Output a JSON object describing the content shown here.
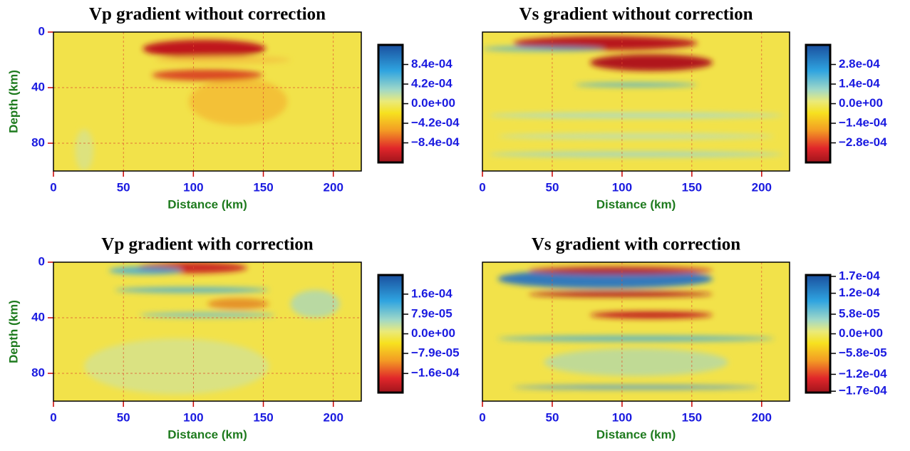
{
  "chart_data": [
    {
      "type": "heatmap",
      "title": "Vp gradient without correction",
      "xlabel": "Distance (km)",
      "ylabel": "Depth (km)",
      "xlim": [
        0,
        220
      ],
      "xticks": [
        0,
        50,
        100,
        150,
        200
      ],
      "ylim": [
        100,
        0
      ],
      "yticks": [
        0,
        40,
        80
      ],
      "grid": true,
      "clim": [
        -0.00126,
        0.00126
      ],
      "cticks": [
        {
          "value": 0.00084,
          "label": "8.4e-04"
        },
        {
          "value": 0.00042,
          "label": "4.2e-04"
        },
        {
          "value": 0,
          "label": "0.0e+00"
        },
        {
          "value": -0.00042,
          "label": "−4.2e-04"
        },
        {
          "value": -0.00084,
          "label": "−8.4e-04"
        }
      ]
    },
    {
      "type": "heatmap",
      "title": "Vs gradient without correction",
      "xlabel": "Distance (km)",
      "xlim": [
        0,
        220
      ],
      "xticks": [
        0,
        50,
        100,
        150,
        200
      ],
      "ylim": [
        100,
        0
      ],
      "grid": true,
      "clim": [
        -0.00042,
        0.00042
      ],
      "cticks": [
        {
          "value": 0.00028,
          "label": "2.8e-04"
        },
        {
          "value": 0.00014,
          "label": "1.4e-04"
        },
        {
          "value": 0,
          "label": "0.0e+00"
        },
        {
          "value": -0.00014,
          "label": "−1.4e-04"
        },
        {
          "value": -0.00028,
          "label": "−2.8e-04"
        }
      ]
    },
    {
      "type": "heatmap",
      "title": "Vp gradient with correction",
      "xlabel": "Distance (km)",
      "ylabel": "Depth (km)",
      "xlim": [
        0,
        220
      ],
      "xticks": [
        0,
        50,
        100,
        150,
        200
      ],
      "ylim": [
        100,
        0
      ],
      "yticks": [
        0,
        40,
        80
      ],
      "grid": true,
      "clim": [
        -0.000237,
        0.000237
      ],
      "cticks": [
        {
          "value": 0.00016,
          "label": "1.6e-04"
        },
        {
          "value": 7.9e-05,
          "label": "7.9e-05"
        },
        {
          "value": 0,
          "label": "0.0e+00"
        },
        {
          "value": -7.9e-05,
          "label": "−7.9e-05"
        },
        {
          "value": -0.00016,
          "label": "−1.6e-04"
        }
      ]
    },
    {
      "type": "heatmap",
      "title": "Vs gradient with correction",
      "xlabel": "Distance (km)",
      "xlim": [
        0,
        220
      ],
      "xticks": [
        0,
        50,
        100,
        150,
        200
      ],
      "ylim": [
        100,
        0
      ],
      "grid": true,
      "clim": [
        -0.000174,
        0.000174
      ],
      "cticks": [
        {
          "value": 0.00017,
          "label": "1.7e-04"
        },
        {
          "value": 0.00012,
          "label": "1.2e-04"
        },
        {
          "value": 5.8e-05,
          "label": "5.8e-05"
        },
        {
          "value": 0,
          "label": "0.0e+00"
        },
        {
          "value": -5.8e-05,
          "label": "−5.8e-05"
        },
        {
          "value": -0.00012,
          "label": "−1.2e-04"
        },
        {
          "value": -0.00017,
          "label": "−1.7e-04"
        }
      ]
    }
  ]
}
